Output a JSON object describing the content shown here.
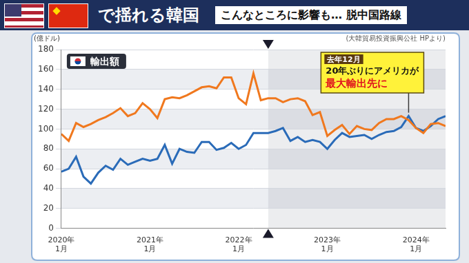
{
  "header": {
    "title": "で揺れる韓国",
    "subtitle": "こんなところに影響も… 脱中国路線"
  },
  "chart_data": {
    "type": "line",
    "title": "輸出額",
    "y_label": "(億ドル)",
    "source": "(大韓貿易投資振興公社 HPより)",
    "categories": [
      "2020年\n1月",
      null,
      null,
      null,
      null,
      null,
      null,
      null,
      null,
      null,
      null,
      null,
      "2021年\n1月",
      null,
      null,
      null,
      null,
      null,
      null,
      null,
      null,
      null,
      null,
      null,
      "2022年\n1月",
      null,
      null,
      null,
      null,
      null,
      null,
      null,
      null,
      null,
      null,
      null,
      "2023年\n1月",
      null,
      null,
      null,
      null,
      null,
      null,
      null,
      null,
      null,
      null,
      null,
      "2024年\n1月",
      null,
      null,
      null,
      null
    ],
    "series": [
      {
        "color": "#f0781e",
        "marker": "none",
        "line_style": "solid",
        "values": [
          95,
          88,
          106,
          102,
          105,
          109,
          112,
          116,
          121,
          113,
          116,
          126,
          120,
          111,
          130,
          132,
          131,
          134,
          138,
          142,
          143,
          141,
          152,
          152,
          131,
          125,
          156,
          129,
          131,
          131,
          127,
          130,
          131,
          128,
          114,
          117,
          93,
          99,
          104,
          95,
          103,
          100,
          99,
          106,
          110,
          110,
          113,
          109,
          101,
          96,
          105,
          106,
          103
        ]
      },
      {
        "color": "#2a6bb8",
        "marker": "none",
        "line_style": "solid",
        "values": [
          57,
          60,
          72,
          52,
          45,
          56,
          63,
          59,
          70,
          64,
          67,
          70,
          68,
          70,
          84,
          65,
          80,
          77,
          76,
          87,
          87,
          79,
          81,
          86,
          80,
          84,
          96,
          96,
          96,
          98,
          101,
          88,
          92,
          87,
          89,
          87,
          80,
          89,
          96,
          92,
          93,
          94,
          90,
          94,
          97,
          98,
          102,
          113,
          101,
          98,
          103,
          110,
          113
        ]
      }
    ],
    "ylim": [
      0,
      180
    ],
    "yticks": [
      0,
      20,
      40,
      60,
      80,
      100,
      120,
      140,
      160,
      180
    ],
    "grid": true,
    "marker_category_index": 28,
    "annotations": [
      {
        "lines": [
          "去年12月",
          "20年ぶりにアメリカが",
          "最大輸出先に"
        ],
        "category_index": 47
      }
    ]
  }
}
